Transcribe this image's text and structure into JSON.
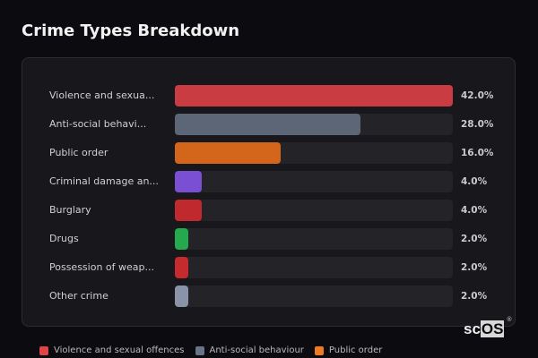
{
  "header": {
    "title": "Crime Types Breakdown"
  },
  "chart_data": {
    "type": "bar",
    "orientation": "horizontal",
    "title": "Crime Types Breakdown",
    "categories": [
      "Violence and sexua...",
      "Anti-social behavi...",
      "Public order",
      "Criminal damage an...",
      "Burglary",
      "Drugs",
      "Possession of weap...",
      "Other crime"
    ],
    "full_categories": [
      "Violence and sexual offences",
      "Anti-social behaviour",
      "Public order"
    ],
    "values": [
      42.0,
      28.0,
      16.0,
      4.0,
      4.0,
      2.0,
      2.0,
      2.0
    ],
    "value_labels": [
      "42.0%",
      "28.0%",
      "16.0%",
      "4.0%",
      "4.0%",
      "2.0%",
      "2.0%",
      "2.0%"
    ],
    "colors": [
      "#c83c42",
      "#5c6677",
      "#d4661c",
      "#7b4fd4",
      "#c02a2e",
      "#26a84e",
      "#c42a2e",
      "#8a94a8"
    ],
    "xlabel": "",
    "ylabel": "",
    "xlim": [
      0,
      42
    ],
    "grid": false
  },
  "legend": [
    {
      "label": "Violence and sexual offences",
      "color": "#e04448"
    },
    {
      "label": "Anti-social behaviour",
      "color": "#6a7486"
    },
    {
      "label": "Public order",
      "color": "#f07a22"
    }
  ],
  "logo": {
    "text_a": "sc",
    "text_b": "OS",
    "reg": "®"
  }
}
